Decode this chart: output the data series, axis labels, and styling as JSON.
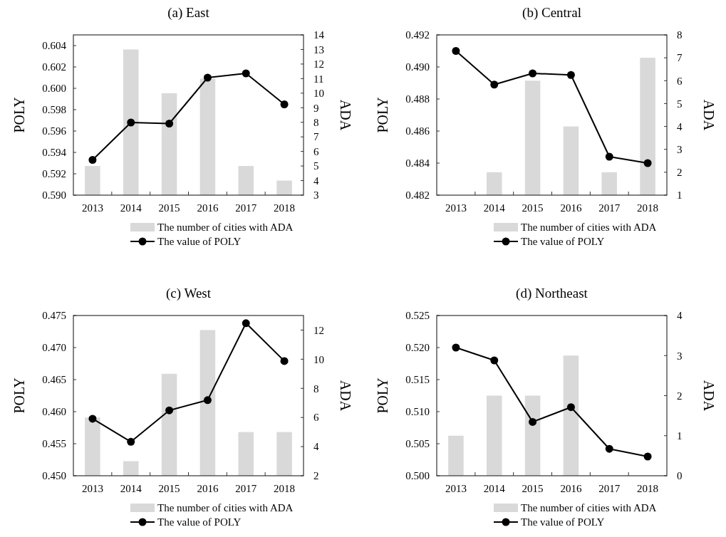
{
  "chart_data": [
    {
      "type": "bar",
      "title": "(a) East",
      "ylabel": "POLY",
      "y2label": "ADA",
      "categories": [
        "2013",
        "2014",
        "2015",
        "2016",
        "2017",
        "2018"
      ],
      "ylim": [
        0.59,
        0.605
      ],
      "yticks": [
        {
          "value": 0.59,
          "label": "0.590"
        },
        {
          "value": 0.592,
          "label": "0.592"
        },
        {
          "value": 0.594,
          "label": "0.594"
        },
        {
          "value": 0.596,
          "label": "0.596"
        },
        {
          "value": 0.598,
          "label": "0.598"
        },
        {
          "value": 0.6,
          "label": "0.600"
        },
        {
          "value": 0.602,
          "label": "0.602"
        },
        {
          "value": 0.604,
          "label": "0.604"
        }
      ],
      "y2lim": [
        3,
        14
      ],
      "y2ticks": [
        3,
        4,
        5,
        6,
        7,
        8,
        9,
        10,
        11,
        12,
        13,
        14
      ],
      "legend": "bottom",
      "marker": "circle",
      "series": [
        {
          "name": "The number of cities with ADA",
          "color": "#d9d9d9",
          "axis": "y2",
          "values": [
            5,
            13,
            10,
            11,
            5,
            4
          ]
        },
        {
          "type": "line",
          "name": "The value of POLY",
          "color": "#000000",
          "axis": "y",
          "values": [
            0.5933,
            0.5968,
            0.5967,
            0.601,
            0.6014,
            0.5985
          ]
        }
      ]
    },
    {
      "type": "bar",
      "title": "(b) Central",
      "ylabel": "POLY",
      "y2label": "ADA",
      "categories": [
        "2013",
        "2014",
        "2015",
        "2016",
        "2017",
        "2018"
      ],
      "ylim": [
        0.482,
        0.492
      ],
      "yticks": [
        {
          "value": 0.482,
          "label": "0.482"
        },
        {
          "value": 0.484,
          "label": "0.484"
        },
        {
          "value": 0.486,
          "label": "0.486"
        },
        {
          "value": 0.488,
          "label": "0.488"
        },
        {
          "value": 0.49,
          "label": "0.490"
        },
        {
          "value": 0.492,
          "label": "0.492"
        }
      ],
      "y2lim": [
        1,
        8
      ],
      "y2ticks": [
        1,
        2,
        3,
        4,
        5,
        6,
        7,
        8
      ],
      "legend": "bottom",
      "marker": "circle",
      "series": [
        {
          "name": "The number of cities with ADA",
          "color": "#d9d9d9",
          "axis": "y2",
          "values": [
            1,
            2,
            6,
            4,
            2,
            7
          ]
        },
        {
          "type": "line",
          "name": "The value of POLY",
          "color": "#000000",
          "axis": "y",
          "values": [
            0.491,
            0.4889,
            0.4896,
            0.4895,
            0.4844,
            0.484
          ]
        }
      ]
    },
    {
      "type": "bar",
      "title": "(c) West",
      "ylabel": "POLY",
      "y2label": "ADA",
      "categories": [
        "2013",
        "2014",
        "2015",
        "2016",
        "2017",
        "2018"
      ],
      "ylim": [
        0.45,
        0.475
      ],
      "yticks": [
        {
          "value": 0.45,
          "label": "0.450"
        },
        {
          "value": 0.455,
          "label": "0.455"
        },
        {
          "value": 0.46,
          "label": "0.460"
        },
        {
          "value": 0.465,
          "label": "0.465"
        },
        {
          "value": 0.47,
          "label": "0.470"
        },
        {
          "value": 0.475,
          "label": "0.475"
        }
      ],
      "y2lim": [
        2,
        13
      ],
      "y2ticks": [
        2,
        4,
        6,
        8,
        10,
        12
      ],
      "legend": "bottom",
      "marker": "circle",
      "series": [
        {
          "name": "The number of cities with ADA",
          "color": "#d9d9d9",
          "axis": "y2",
          "values": [
            6,
            3,
            9,
            12,
            5,
            5
          ]
        },
        {
          "type": "line",
          "name": "The value of POLY",
          "color": "#000000",
          "axis": "y",
          "values": [
            0.4589,
            0.4553,
            0.4602,
            0.4618,
            0.4738,
            0.4679
          ]
        }
      ]
    },
    {
      "type": "bar",
      "title": "(d) Northeast",
      "ylabel": "POLY",
      "y2label": "ADA",
      "categories": [
        "2013",
        "2014",
        "2015",
        "2016",
        "2017",
        "2018"
      ],
      "ylim": [
        0.5,
        0.525
      ],
      "yticks": [
        {
          "value": 0.5,
          "label": "0.500"
        },
        {
          "value": 0.505,
          "label": "0.505"
        },
        {
          "value": 0.51,
          "label": "0.510"
        },
        {
          "value": 0.515,
          "label": "0.515"
        },
        {
          "value": 0.52,
          "label": "0.520"
        },
        {
          "value": 0.525,
          "label": "0.525"
        }
      ],
      "y2lim": [
        0,
        4
      ],
      "y2ticks": [
        0,
        1,
        2,
        3,
        4
      ],
      "legend": "bottom",
      "marker": "circle",
      "series": [
        {
          "name": "The number of cities with ADA",
          "color": "#d9d9d9",
          "axis": "y2",
          "values": [
            1,
            2,
            2,
            3,
            0,
            0
          ]
        },
        {
          "type": "line",
          "name": "The value of POLY",
          "color": "#000000",
          "axis": "y",
          "values": [
            0.52,
            0.518,
            0.5084,
            0.5107,
            0.5042,
            0.503
          ]
        }
      ]
    }
  ]
}
